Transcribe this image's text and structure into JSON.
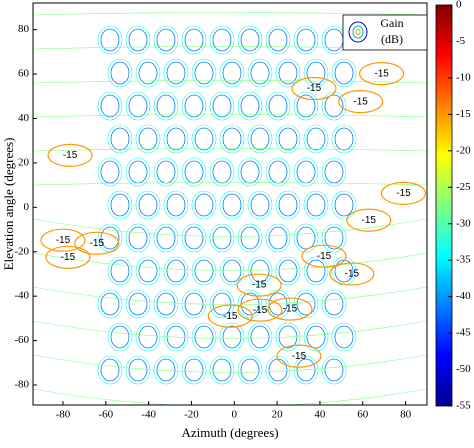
{
  "chart_data": {
    "type": "contour",
    "x_label": "Azimuth (degrees)",
    "y_label": "Elevation angle (degrees)",
    "xlim": [
      -94,
      90
    ],
    "xticks": [
      -80,
      -60,
      -40,
      -20,
      0,
      20,
      40,
      60,
      80
    ],
    "ylim": [
      -89,
      92
    ],
    "yticks": [
      -80,
      -60,
      -40,
      -20,
      0,
      20,
      40,
      60,
      80
    ],
    "legend": {
      "label": "Gain",
      "unit": "(dB)",
      "position": "upper right"
    },
    "colorbar": {
      "lim": [
        -55,
        0
      ],
      "ticks": [
        0,
        -5,
        -10,
        -15,
        -20,
        -25,
        -30,
        -35,
        -40,
        -45,
        -50,
        -55
      ],
      "colormap": "jet"
    },
    "contour_labels": [
      {
        "x": 68.8,
        "y": 60.2,
        "value": -15
      },
      {
        "x": 37.2,
        "y": 53.5,
        "value": -15
      },
      {
        "x": 59,
        "y": 47.6,
        "value": -15
      },
      {
        "x": -76.7,
        "y": 23.4,
        "value": -15
      },
      {
        "x": 79,
        "y": 6.3,
        "value": -15
      },
      {
        "x": 62.8,
        "y": -5.8,
        "value": -15
      },
      {
        "x": -80,
        "y": -14.8,
        "value": -15
      },
      {
        "x": -64.2,
        "y": -16.2,
        "value": -15
      },
      {
        "x": -77.7,
        "y": -22.5,
        "value": -15
      },
      {
        "x": 41.9,
        "y": -22,
        "value": -15
      },
      {
        "x": 11.6,
        "y": -35,
        "value": -15
      },
      {
        "x": 54.9,
        "y": -30,
        "value": -15
      },
      {
        "x": 12,
        "y": -46.3,
        "value": -15
      },
      {
        "x": 26,
        "y": -45.8,
        "value": -15
      },
      {
        "x": -1.9,
        "y": -49,
        "value": -15
      },
      {
        "x": 30.2,
        "y": -67,
        "value": -15
      }
    ]
  }
}
